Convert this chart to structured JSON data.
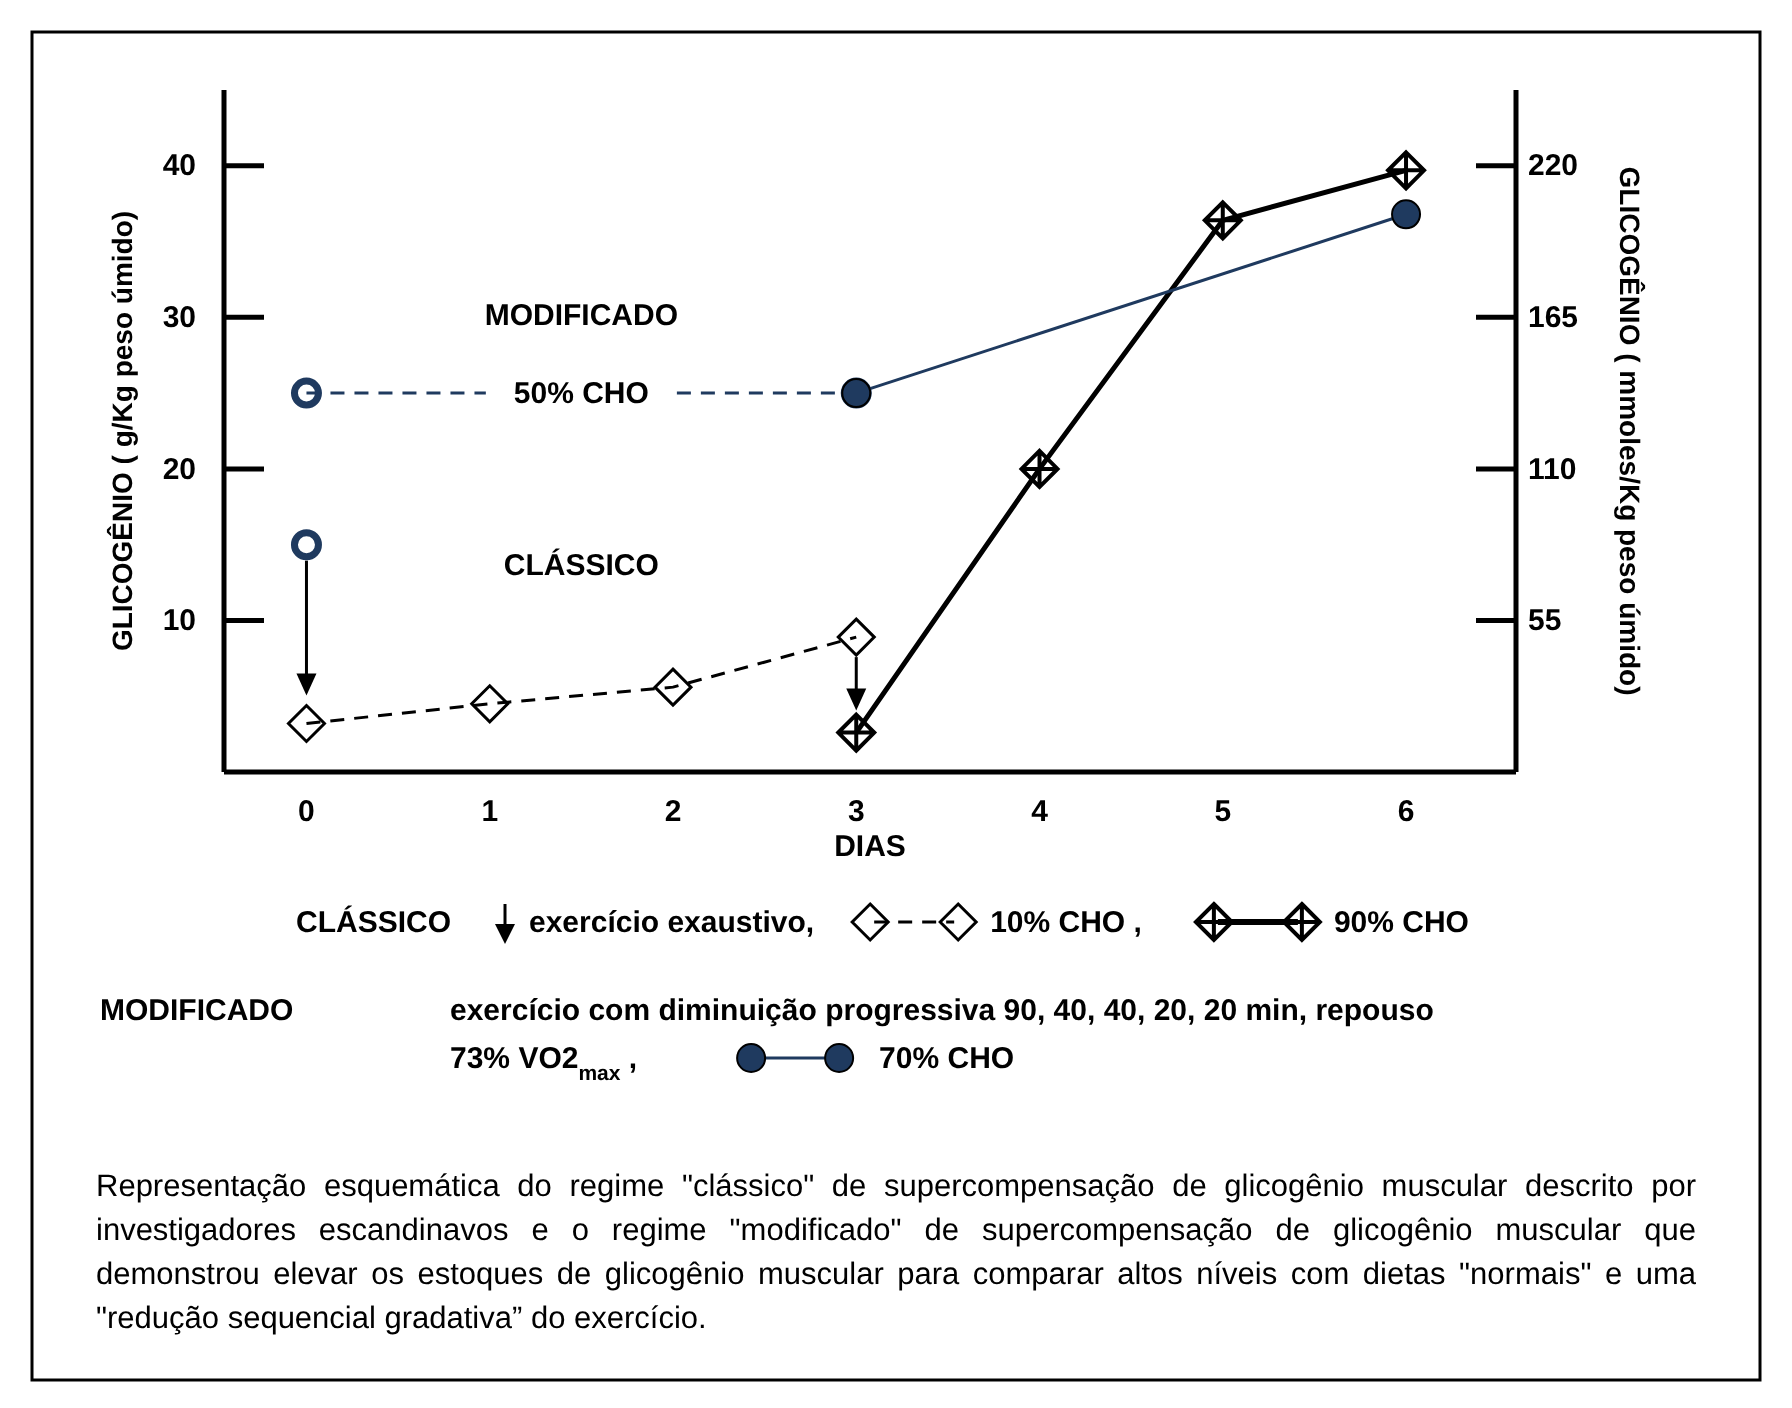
{
  "chart_data": {
    "type": "line",
    "xlabel": "DIAS",
    "ylabel": "GLICOGÊNIO ( g/Kg peso úmido)",
    "y2label": "GLICOGÊNIO ( mmoles/Kg peso úmido)",
    "xlim": [
      -0.45,
      6.6
    ],
    "xticks": [
      0,
      1,
      2,
      3,
      4,
      5,
      6
    ],
    "ylim": [
      0,
      45
    ],
    "yticks": [
      10,
      20,
      30,
      40
    ],
    "y2lim": [
      0,
      247.5
    ],
    "y2ticks": [
      55,
      110,
      165,
      220
    ],
    "legend": "bottom",
    "grid": false,
    "series": [
      {
        "name": "10% CHO ,",
        "color": "#000000",
        "x": [
          0,
          1,
          2,
          3
        ],
        "values": [
          3.2,
          4.5,
          5.6,
          8.9
        ],
        "marker": "diamond",
        "line_style": "dashed"
      },
      {
        "name": "90% CHO",
        "color": "#000000",
        "x": [
          3,
          4,
          5,
          6
        ],
        "values": [
          2.6,
          20,
          36.4,
          39.7
        ],
        "marker": "cross",
        "line_style": "solid"
      },
      {
        "name": "50% CHO",
        "color": "#1f3a5f",
        "x": [
          0,
          3
        ],
        "values": [
          25,
          25
        ],
        "marker": "circle",
        "line_style": "dashed"
      },
      {
        "name": "70% CHO",
        "color": "#1f3a5f",
        "x": [
          3,
          6
        ],
        "values": [
          25,
          36.8
        ],
        "marker": "circle",
        "line_style": "solid"
      },
      {
        "type": "scatter",
        "color": "#1f3a5f",
        "x": [
          0
        ],
        "values": [
          15
        ],
        "marker": "circle"
      }
    ],
    "annotations": [
      "MODIFICADO",
      "CLÁSSICO",
      "CLÁSSICO",
      "exercício exaustivo,",
      "MODIFICADO",
      "exercício com diminuição progressiva  90, 40, 40, 20, 20 min, repouso",
      "73% VO2$_{max}$ ,",
      "Representação esquemática do regime \"clássico\" de supercompensação de glicogênio muscular descrito por investigadores escandinavos e o regime \"modificado\" de supercompensação de glicogênio muscular que demonstrou elevar os estoques de glicogênio muscular para comparar altos níveis com dietas \"normais\" e uma \"redução sequencial gradativa” do exercício."
    ]
  }
}
